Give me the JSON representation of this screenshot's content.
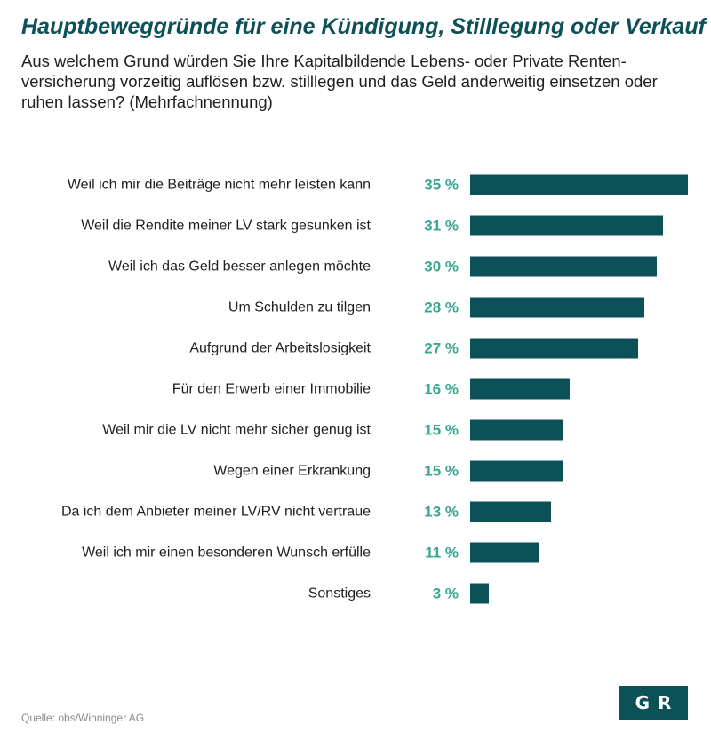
{
  "title": "Hauptbeweggründe für eine Kündigung, Stilllegung oder Verkauf",
  "subtitle": "Aus welchem Grund würden Sie Ihre Kapitalbildende Lebens- oder Private Renten-versicherung vorzeitig auflösen bzw. stilllegen und das Geld anderweitig einsetzen oder ruhen lassen? (Mehrfachnennung)",
  "source": "Quelle: obs/Winninger AG",
  "logo_text": "GR",
  "colors": {
    "bar": "#0c5058",
    "value_label": "#3aa692",
    "title": "#0c5058"
  },
  "chart_data": {
    "type": "bar",
    "orientation": "horizontal",
    "categories": [
      "Weil ich mir die Beiträge nicht mehr leisten kann",
      "Weil die Rendite  meiner LV stark gesunken ist",
      "Weil ich das Geld besser anlegen möchte",
      "Um Schulden zu tilgen",
      "Aufgrund der Arbeitslosigkeit",
      "Für den Erwerb einer Immobilie",
      "Weil mir die LV nicht mehr sicher genug ist",
      "Wegen einer Erkrankung",
      "Da ich dem Anbieter meiner LV/RV nicht vertraue",
      "Weil ich mir einen besonderen Wunsch erfülle",
      "Sonstiges"
    ],
    "values": [
      35,
      31,
      30,
      28,
      27,
      16,
      15,
      15,
      13,
      11,
      3
    ],
    "value_labels": [
      "35 %",
      "31 %",
      "30 %",
      "28 %",
      "27 %",
      "16 %",
      "15 %",
      "15 %",
      "13 %",
      "11 %",
      "3 %"
    ],
    "unit": "%",
    "xlim": [
      0,
      35
    ],
    "grid": false,
    "legend": "none"
  }
}
